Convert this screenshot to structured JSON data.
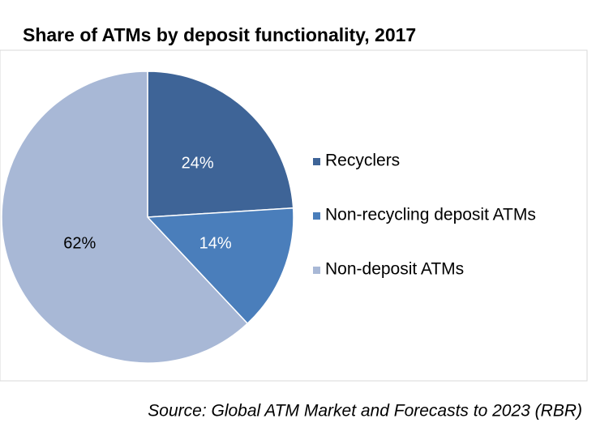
{
  "chart_data": {
    "type": "pie",
    "title": "Share of ATMs by deposit functionality, 2017",
    "categories": [
      "Recyclers",
      "Non-recycling deposit ATMs",
      "Non-deposit ATMs"
    ],
    "values": [
      24,
      14,
      62
    ],
    "value_labels": [
      "24%",
      "14%",
      "62%"
    ],
    "colors": [
      "#3e6497",
      "#4a7ebb",
      "#a8b8d6"
    ],
    "source": "Source: Global ATM Market and Forecasts to 2023 (RBR)"
  }
}
